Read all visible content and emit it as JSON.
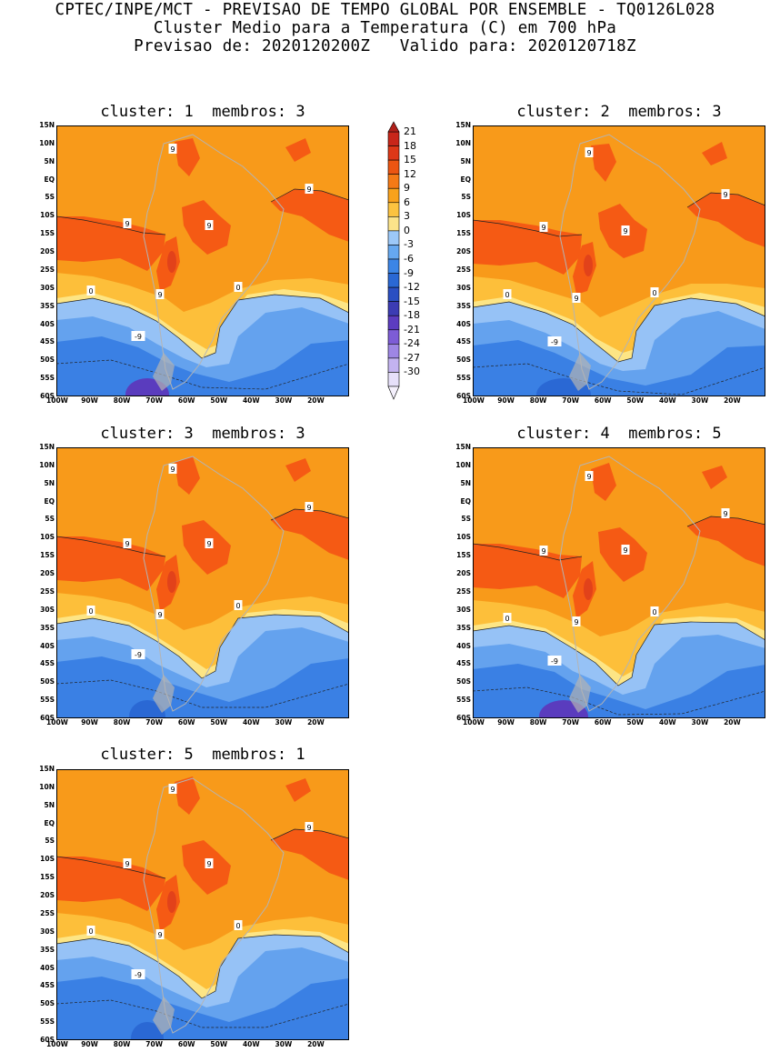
{
  "header": {
    "line1": "CPTEC/INPE/MCT - PREVISAO DE TEMPO GLOBAL POR ENSEMBLE - TQ0126L028",
    "line2": "Cluster Medio para a Temperatura (C) em 700 hPa",
    "line3": "Previsao de: 2020120200Z   Valido para: 2020120718Z"
  },
  "panels": [
    {
      "title": "cluster: 1  membros: 3"
    },
    {
      "title": "cluster: 2  membros: 3"
    },
    {
      "title": "cluster: 3  membros: 3"
    },
    {
      "title": "cluster: 4  membros: 5"
    },
    {
      "title": "cluster: 5  membros: 1"
    }
  ],
  "lat_labels": [
    "15N",
    "10N",
    "5N",
    "EQ",
    "5S",
    "10S",
    "15S",
    "20S",
    "25S",
    "30S",
    "35S",
    "40S",
    "45S",
    "50S",
    "55S",
    "60S"
  ],
  "lon_labels": [
    "100W",
    "90W",
    "80W",
    "70W",
    "60W",
    "50W",
    "40W",
    "30W",
    "20W"
  ],
  "colorbar": {
    "levels": [
      "21",
      "18",
      "15",
      "12",
      "9",
      "6",
      "3",
      "0",
      "-3",
      "-6",
      "-9",
      "-12",
      "-15",
      "-18",
      "-21",
      "-24",
      "-27",
      "-30"
    ],
    "colors": [
      "#c8261a",
      "#dd3818",
      "#ec5512",
      "#f57a16",
      "#f9a21c",
      "#fcc340",
      "#fbe38a",
      "#9cc8f8",
      "#66a8f0",
      "#3c85e6",
      "#2a68d4",
      "#2b4fc2",
      "#3c3cb4",
      "#5c3cc0",
      "#7d5cd6",
      "#9e86e4",
      "#c3b3f0",
      "#e6e0fa"
    ]
  },
  "contour_labels": {
    "nine": "9",
    "zero": "0",
    "minus_nine": "-9"
  }
}
